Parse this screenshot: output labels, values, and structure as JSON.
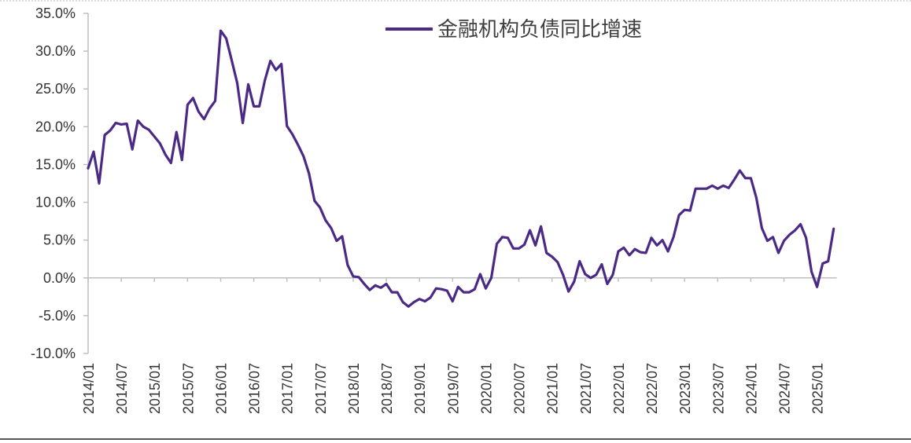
{
  "chart_data": {
    "type": "line",
    "title": "",
    "xlabel": "",
    "ylabel": "",
    "ylim": [
      -10,
      35
    ],
    "y_tick_labels": [
      "35.0%",
      "30.0%",
      "25.0%",
      "20.0%",
      "15.0%",
      "10.0%",
      "5.0%",
      "0.0%",
      "-5.0%",
      "-10.0%"
    ],
    "y_tick_values": [
      35,
      30,
      25,
      20,
      15,
      10,
      5,
      0,
      -5,
      -10
    ],
    "x_tick_labels": [
      "2014/01",
      "2014/07",
      "2015/01",
      "2015/07",
      "2016/01",
      "2016/07",
      "2017/01",
      "2017/07",
      "2018/01",
      "2018/07",
      "2019/01",
      "2019/07",
      "2020/01",
      "2020/07",
      "2021/01",
      "2021/07",
      "2022/01",
      "2022/07",
      "2023/01",
      "2023/07",
      "2024/01",
      "2024/07",
      "2025/01"
    ],
    "grid": false,
    "legend_position": "top-center",
    "colors": {
      "line": "#4b2a86",
      "axis": "#bfbfbf",
      "text": "#333333"
    },
    "series": [
      {
        "name": "金融机构负债同比增速",
        "x_start": "2014/01",
        "frequency": "monthly",
        "values": [
          14.5,
          16.7,
          12.5,
          18.9,
          19.5,
          20.5,
          20.3,
          20.4,
          17.0,
          20.8,
          20.0,
          19.6,
          18.7,
          17.8,
          16.3,
          15.2,
          19.3,
          15.6,
          22.9,
          23.8,
          22.0,
          21.0,
          22.4,
          23.4,
          32.7,
          31.7,
          28.8,
          25.8,
          20.5,
          25.6,
          22.7,
          22.7,
          26.1,
          28.7,
          27.5,
          28.3,
          20.1,
          19.0,
          17.6,
          16.1,
          13.8,
          10.2,
          9.3,
          7.6,
          6.6,
          4.9,
          5.5,
          1.7,
          0.2,
          0.1,
          -0.8,
          -1.6,
          -1.0,
          -1.3,
          -0.8,
          -1.9,
          -1.9,
          -3.2,
          -3.8,
          -3.2,
          -2.8,
          -3.1,
          -2.6,
          -1.4,
          -1.5,
          -1.7,
          -3.1,
          -1.2,
          -1.9,
          -1.9,
          -1.5,
          0.5,
          -1.4,
          0.0,
          4.5,
          5.4,
          5.3,
          3.9,
          3.9,
          4.4,
          6.3,
          4.3,
          6.8,
          3.3,
          2.8,
          2.1,
          0.4,
          -1.8,
          -0.5,
          2.2,
          0.5,
          0.0,
          0.4,
          1.8,
          -0.8,
          0.4,
          3.5,
          4.0,
          3.0,
          3.8,
          3.4,
          3.3,
          5.3,
          4.3,
          5.0,
          3.5,
          5.4,
          8.3,
          9.0,
          8.9,
          11.8,
          11.8,
          11.8,
          12.2,
          11.8,
          12.2,
          11.9,
          13.0,
          14.2,
          13.2,
          13.2,
          10.6,
          6.6,
          4.9,
          5.4,
          3.3,
          4.9,
          5.7,
          6.3,
          7.1,
          5.3,
          0.8,
          -1.2,
          1.9,
          2.2,
          6.5
        ]
      }
    ]
  }
}
